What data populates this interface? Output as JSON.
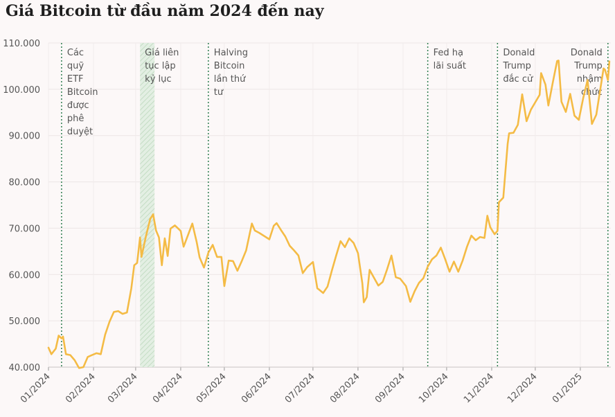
{
  "chart_data": {
    "type": "line",
    "title": "Giá Bitcoin từ đầu năm 2024 đến nay",
    "xlabel": "",
    "ylabel": "",
    "ylim": [
      40000,
      110000
    ],
    "grid": true,
    "legend": "none",
    "y_ticks": [
      "40.000",
      "50.000",
      "60.000",
      "70.000",
      "80.000",
      "90.000",
      "100.000",
      "110.000"
    ],
    "x_ticks": [
      "01/2024",
      "02/2024",
      "03/2024",
      "04/2024",
      "05/2024",
      "06/2024",
      "07/2024",
      "08/2024",
      "09/2024",
      "10/2024",
      "11/2024",
      "12/2024",
      "01/2025"
    ],
    "line_color": "#f4bb45",
    "event_color": "#2e7d4f",
    "series": [
      {
        "name": "",
        "points": [
          [
            "2024-01-01",
            44200
          ],
          [
            "2024-01-03",
            42800
          ],
          [
            "2024-01-06",
            44000
          ],
          [
            "2024-01-08",
            46800
          ],
          [
            "2024-01-10",
            46200
          ],
          [
            "2024-01-11",
            46600
          ],
          [
            "2024-01-13",
            42800
          ],
          [
            "2024-01-16",
            42600
          ],
          [
            "2024-01-19",
            41500
          ],
          [
            "2024-01-22",
            39800
          ],
          [
            "2024-01-25",
            40000
          ],
          [
            "2024-01-28",
            42200
          ],
          [
            "2024-01-31",
            42600
          ],
          [
            "2024-02-03",
            43000
          ],
          [
            "2024-02-06",
            42800
          ],
          [
            "2024-02-09",
            47000
          ],
          [
            "2024-02-12",
            49800
          ],
          [
            "2024-02-15",
            51900
          ],
          [
            "2024-02-18",
            52100
          ],
          [
            "2024-02-21",
            51500
          ],
          [
            "2024-02-24",
            51800
          ],
          [
            "2024-02-27",
            57000
          ],
          [
            "2024-02-29",
            62000
          ],
          [
            "2024-03-02",
            62500
          ],
          [
            "2024-03-04",
            68000
          ],
          [
            "2024-03-05",
            63800
          ],
          [
            "2024-03-08",
            68200
          ],
          [
            "2024-03-11",
            72000
          ],
          [
            "2024-03-13",
            73000
          ],
          [
            "2024-03-15",
            69500
          ],
          [
            "2024-03-17",
            68000
          ],
          [
            "2024-03-19",
            62000
          ],
          [
            "2024-03-21",
            67800
          ],
          [
            "2024-03-23",
            64000
          ],
          [
            "2024-03-25",
            69900
          ],
          [
            "2024-03-28",
            70600
          ],
          [
            "2024-04-01",
            69400
          ],
          [
            "2024-04-03",
            66000
          ],
          [
            "2024-04-06",
            68500
          ],
          [
            "2024-04-09",
            71000
          ],
          [
            "2024-04-12",
            67000
          ],
          [
            "2024-04-14",
            63700
          ],
          [
            "2024-04-17",
            61500
          ],
          [
            "2024-04-20",
            64700
          ],
          [
            "2024-04-23",
            66400
          ],
          [
            "2024-04-26",
            63800
          ],
          [
            "2024-04-29",
            63800
          ],
          [
            "2024-05-01",
            57500
          ],
          [
            "2024-05-04",
            63000
          ],
          [
            "2024-05-07",
            62900
          ],
          [
            "2024-05-10",
            60800
          ],
          [
            "2024-05-13",
            62900
          ],
          [
            "2024-05-16",
            65200
          ],
          [
            "2024-05-20",
            71000
          ],
          [
            "2024-05-22",
            69500
          ],
          [
            "2024-05-25",
            69000
          ],
          [
            "2024-05-28",
            68400
          ],
          [
            "2024-06-01",
            67600
          ],
          [
            "2024-06-04",
            70500
          ],
          [
            "2024-06-06",
            71100
          ],
          [
            "2024-06-09",
            69600
          ],
          [
            "2024-06-12",
            68200
          ],
          [
            "2024-06-15",
            66200
          ],
          [
            "2024-06-18",
            65200
          ],
          [
            "2024-06-21",
            64100
          ],
          [
            "2024-06-24",
            60300
          ],
          [
            "2024-06-27",
            61600
          ],
          [
            "2024-07-01",
            62700
          ],
          [
            "2024-07-04",
            57000
          ],
          [
            "2024-07-05",
            56800
          ],
          [
            "2024-07-08",
            56000
          ],
          [
            "2024-07-11",
            57400
          ],
          [
            "2024-07-14",
            60800
          ],
          [
            "2024-07-17",
            64100
          ],
          [
            "2024-07-20",
            67200
          ],
          [
            "2024-07-23",
            65900
          ],
          [
            "2024-07-26",
            67800
          ],
          [
            "2024-07-29",
            66800
          ],
          [
            "2024-08-01",
            64600
          ],
          [
            "2024-08-04",
            58100
          ],
          [
            "2024-08-05",
            54000
          ],
          [
            "2024-08-07",
            55100
          ],
          [
            "2024-08-09",
            61000
          ],
          [
            "2024-08-12",
            59300
          ],
          [
            "2024-08-15",
            57600
          ],
          [
            "2024-08-18",
            58400
          ],
          [
            "2024-08-21",
            61100
          ],
          [
            "2024-08-24",
            64100
          ],
          [
            "2024-08-27",
            59400
          ],
          [
            "2024-08-30",
            59100
          ],
          [
            "2024-09-03",
            57500
          ],
          [
            "2024-09-06",
            54100
          ],
          [
            "2024-09-09",
            56400
          ],
          [
            "2024-09-12",
            58200
          ],
          [
            "2024-09-15",
            59200
          ],
          [
            "2024-09-18",
            61700
          ],
          [
            "2024-09-21",
            63300
          ],
          [
            "2024-09-24",
            64100
          ],
          [
            "2024-09-27",
            65800
          ],
          [
            "2024-09-30",
            63300
          ],
          [
            "2024-10-03",
            60600
          ],
          [
            "2024-10-06",
            62800
          ],
          [
            "2024-10-09",
            60600
          ],
          [
            "2024-10-12",
            63000
          ],
          [
            "2024-10-15",
            66000
          ],
          [
            "2024-10-18",
            68400
          ],
          [
            "2024-10-21",
            67400
          ],
          [
            "2024-10-24",
            68100
          ],
          [
            "2024-10-27",
            67900
          ],
          [
            "2024-10-29",
            72700
          ],
          [
            "2024-10-31",
            70200
          ],
          [
            "2024-11-03",
            68700
          ],
          [
            "2024-11-05",
            69400
          ],
          [
            "2024-11-06",
            75600
          ],
          [
            "2024-11-09",
            76600
          ],
          [
            "2024-11-12",
            88200
          ],
          [
            "2024-11-13",
            90500
          ],
          [
            "2024-11-16",
            90600
          ],
          [
            "2024-11-19",
            92300
          ],
          [
            "2024-11-22",
            98900
          ],
          [
            "2024-11-25",
            93100
          ],
          [
            "2024-11-28",
            95600
          ],
          [
            "2024-12-01",
            97200
          ],
          [
            "2024-12-04",
            98800
          ],
          [
            "2024-12-05",
            103500
          ],
          [
            "2024-12-08",
            101000
          ],
          [
            "2024-12-10",
            96500
          ],
          [
            "2024-12-13",
            101400
          ],
          [
            "2024-12-16",
            106100
          ],
          [
            "2024-12-17",
            106200
          ],
          [
            "2024-12-19",
            97300
          ],
          [
            "2024-12-22",
            95100
          ],
          [
            "2024-12-25",
            99000
          ],
          [
            "2024-12-28",
            94300
          ],
          [
            "2024-12-31",
            93400
          ],
          [
            "2025-01-03",
            98100
          ],
          [
            "2025-01-06",
            102000
          ],
          [
            "2025-01-09",
            92500
          ],
          [
            "2025-01-12",
            94500
          ],
          [
            "2025-01-15",
            100500
          ],
          [
            "2025-01-17",
            104500
          ],
          [
            "2025-01-18",
            104200
          ],
          [
            "2025-01-20",
            102000
          ],
          [
            "2025-01-21",
            106000
          ]
        ]
      }
    ],
    "events": [
      {
        "date": "2024-01-10",
        "lines": [
          "Các",
          "quỹ",
          "ETF",
          "Bitcoin",
          "được",
          "phê",
          "duyệt"
        ],
        "align": "left"
      },
      {
        "date": "2024-04-20",
        "lines": [
          "Halving",
          "Bitcoin",
          "lần thứ",
          "tư"
        ],
        "align": "left"
      },
      {
        "date": "2024-09-18",
        "lines": [
          "Fed hạ",
          "lãi suất"
        ],
        "align": "left"
      },
      {
        "date": "2024-11-05",
        "lines": [
          "Donald",
          "Trump",
          "đắc cử"
        ],
        "align": "left"
      },
      {
        "date": "2025-01-20",
        "lines": [
          "Donald",
          "Trump",
          "nhậm",
          "chức"
        ],
        "align": "right"
      }
    ],
    "highlight": {
      "start": "2024-03-04",
      "end": "2024-03-14",
      "lines": [
        "Giá liên",
        "tục lập",
        "kỷ lục"
      ]
    }
  }
}
